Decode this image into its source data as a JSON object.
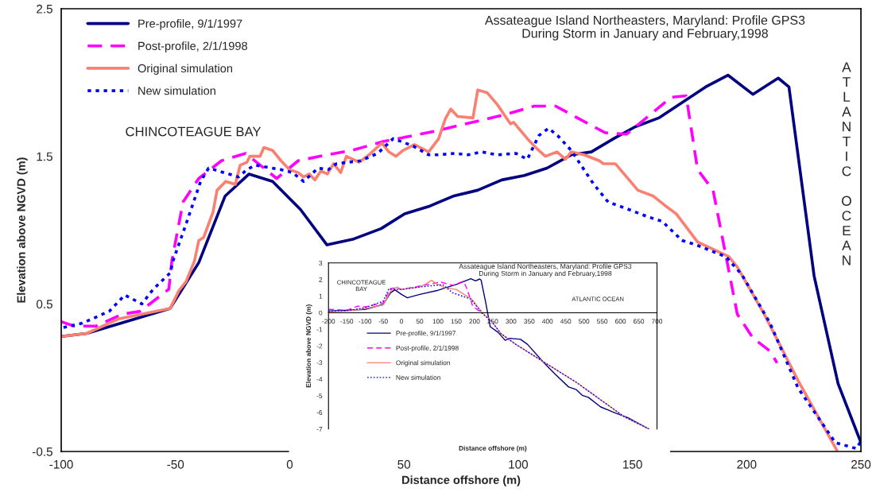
{
  "chart_data": [
    {
      "type": "line",
      "title": "Assateague Island Northeasters, Maryland: Profile GPS3\nDuring Storm in January and February,1998",
      "xlabel": "Distance offshore (m)",
      "ylabel": "Elevation above NGVD (m)",
      "xlim": [
        -100,
        250
      ],
      "xticks": [
        -100,
        -50,
        0,
        50,
        100,
        150,
        200,
        250
      ],
      "ylim": [
        -0.5,
        2.5
      ],
      "yticks": [
        -0.5,
        0.5,
        1.5,
        2.5
      ],
      "grid": false,
      "legend": "top left",
      "annotations": [
        "CHINCOTEAGUE BAY",
        "ATLANTIC OCEAN"
      ],
      "series": [
        {
          "name": "Pre-profile, 9/1/1997",
          "color": "#000080",
          "line_style": "solid",
          "x": [
            -100,
            -88.9,
            -52.3,
            -39.8,
            -28.3,
            -17.8,
            -7.5,
            4.7,
            16.3,
            28,
            40,
            50.3,
            60.8,
            71.5,
            82.2,
            92.8,
            102.7,
            112.6,
            123.2,
            132,
            141.8,
            151.2,
            161.5,
            182,
            191.8,
            202.7,
            213.8,
            218.5,
            229.5,
            240,
            250
          ],
          "values": [
            0.28,
            0.3,
            0.47,
            0.78,
            1.23,
            1.38,
            1.33,
            1.14,
            0.9,
            0.94,
            1.01,
            1.11,
            1.16,
            1.23,
            1.27,
            1.34,
            1.37,
            1.42,
            1.51,
            1.53,
            1.62,
            1.7,
            1.76,
            1.97,
            2.05,
            1.92,
            2.03,
            1.97,
            0.69,
            -0.04,
            -0.44
          ]
        },
        {
          "name": "Post-profile, 2/1/1998",
          "color": "#ff00ff",
          "line_style": "dashed",
          "x": [
            -100,
            -94.4,
            -84.6,
            -73.4,
            -65.4,
            -52.9,
            -51.6,
            -46.7,
            -39.8,
            -29.9,
            -19.3,
            -5.7,
            3.7,
            16.1,
            27.3,
            40.9,
            63.5,
            93.5,
            107,
            116.4,
            138,
            147.4,
            167,
            173.5,
            178.5,
            185.3,
            195.9,
            202.7,
            210.2,
            213.3
          ],
          "values": [
            0.38,
            0.35,
            0.35,
            0.43,
            0.45,
            0.6,
            0.79,
            1.19,
            1.35,
            1.47,
            1.52,
            1.35,
            1.47,
            1.51,
            1.54,
            1.6,
            1.67,
            1.78,
            1.84,
            1.84,
            1.66,
            1.65,
            1.9,
            1.91,
            1.41,
            1.27,
            0.43,
            0.27,
            0.18,
            0.1
          ]
        },
        {
          "name": "Original simulation",
          "color": "#fa8072",
          "line_style": "solid",
          "x": [
            -100,
            -88.9,
            -74.6,
            -52.3,
            -48.5,
            -45.4,
            -41.7,
            -39.8,
            -37.7,
            -33.6,
            -31.8,
            -28,
            -23.8,
            -21.7,
            -18.7,
            -17.5,
            -13,
            -11.3,
            -7.5,
            -3.8,
            -0.1,
            3.7,
            6,
            8.6,
            11,
            13.6,
            16.5,
            19.2,
            22.3,
            24.8,
            30.4,
            34.7,
            40.3,
            43.4,
            46.5,
            49.6,
            54.6,
            60.8,
            65.2,
            68,
            70.5,
            73.5,
            80.2,
            82.3,
            86.5,
            90.9,
            96.6,
            98,
            104,
            108.3,
            111.9,
            117,
            120.7,
            123.2,
            128.8,
            135.5,
            137.3,
            142.5,
            152.4,
            159.2,
            164,
            169.2,
            178.5,
            192.2,
            195.9,
            207.7,
            222.5,
            239.4
          ],
          "values": [
            0.28,
            0.3,
            0.4,
            0.47,
            0.59,
            0.65,
            0.79,
            0.93,
            0.95,
            1.12,
            1.27,
            1.33,
            1.31,
            1.44,
            1.46,
            1.5,
            1.5,
            1.56,
            1.54,
            1.47,
            1.41,
            1.39,
            1.36,
            1.38,
            1.34,
            1.4,
            1.38,
            1.45,
            1.39,
            1.5,
            1.46,
            1.51,
            1.59,
            1.53,
            1.5,
            1.54,
            1.58,
            1.53,
            1.62,
            1.75,
            1.82,
            1.77,
            1.76,
            1.95,
            1.93,
            1.85,
            1.72,
            1.73,
            1.62,
            1.55,
            1.5,
            1.53,
            1.48,
            1.53,
            1.51,
            1.47,
            1.45,
            1.45,
            1.27,
            1.23,
            1.17,
            1.11,
            0.92,
            0.82,
            0.75,
            0.43,
            -0.02,
            -0.49
          ]
        },
        {
          "name": "New simulation",
          "color": "#0000ff",
          "line_style": "dotted",
          "x": [
            -99,
            -90.7,
            -79,
            -72.2,
            -64.7,
            -59.7,
            -52.3,
            -50.9,
            -45.4,
            -41.2,
            -39,
            -35.5,
            -33.1,
            -22.4,
            -18.7,
            -15.1,
            -11.2,
            -3.8,
            1.2,
            6.1,
            12.4,
            16.9,
            20.4,
            31,
            38.5,
            45.3,
            54,
            60.8,
            64.8,
            72.2,
            78,
            84,
            90.9,
            99,
            104,
            109,
            113.3,
            117.3,
            123.2,
            133.1,
            139.4,
            146.7,
            156.8,
            163,
            171.7,
            177.9,
            190.9,
            197.8,
            210.2,
            222.5,
            238.8,
            248,
            250
          ],
          "values": [
            0.34,
            0.37,
            0.45,
            0.56,
            0.5,
            0.6,
            0.71,
            0.8,
            1.04,
            1.23,
            1.33,
            1.42,
            1.41,
            1.36,
            1.41,
            1.44,
            1.43,
            1.41,
            1.39,
            1.33,
            1.42,
            1.41,
            1.45,
            1.47,
            1.52,
            1.62,
            1.57,
            1.51,
            1.51,
            1.52,
            1.51,
            1.53,
            1.51,
            1.52,
            1.48,
            1.64,
            1.69,
            1.64,
            1.54,
            1.31,
            1.19,
            1.15,
            1.09,
            1.06,
            0.93,
            0.9,
            0.82,
            0.7,
            0.37,
            -0.07,
            -0.44,
            -0.48,
            -0.43
          ]
        }
      ]
    },
    {
      "type": "line",
      "title": "Assateague Island Northeasters, Maryland: Profile GPS3\nDuring Storm in January and February,1998",
      "xlabel": "Distance offshore (m)",
      "ylabel": "Elevation above NGVD (m)",
      "xlim": [
        -200,
        700
      ],
      "xticks": [
        -200,
        -150,
        -100,
        -50,
        0,
        50,
        100,
        150,
        200,
        250,
        300,
        350,
        400,
        450,
        500,
        550,
        600,
        650,
        700
      ],
      "ylim": [
        -7,
        3
      ],
      "yticks": [
        -7,
        -6,
        -5,
        -4,
        -3,
        -2,
        -1,
        0,
        1,
        2,
        3
      ],
      "grid": false,
      "legend": "left",
      "annotations": [
        "CHINCOTEAGUE\nBAY",
        "ATLANTIC OCEAN"
      ],
      "series": [
        {
          "name": "Pre-profile, 9/1/1997",
          "color": "#000080",
          "line_style": "solid",
          "x": [
            -200,
            -100,
            -50,
            -30,
            -18,
            0,
            16,
            50,
            100,
            150,
            190,
            203,
            214,
            218,
            230,
            243,
            264,
            284,
            297,
            326,
            345,
            388,
            421,
            458,
            479,
            495,
            512,
            545,
            586,
            620,
            678
          ],
          "values": [
            0.1,
            0.2,
            0.5,
            1.2,
            1.38,
            1.1,
            0.9,
            1.1,
            1.35,
            1.7,
            2.05,
            1.92,
            2.03,
            1.97,
            0.7,
            -0.84,
            -1.17,
            -1.66,
            -1.54,
            -1.6,
            -1.9,
            -2.96,
            -3.7,
            -4.47,
            -4.63,
            -4.97,
            -5.09,
            -5.66,
            -6.04,
            -6.31,
            -7
          ]
        },
        {
          "name": "Post-profile, 2/1/1998",
          "color": "#ff00ff",
          "line_style": "dashed",
          "x": [
            -200,
            -150,
            -120,
            -100,
            -50,
            -30,
            -18,
            0,
            50,
            107,
            140,
            170,
            180,
            195,
            213
          ],
          "values": [
            0.2,
            0.15,
            0.4,
            0.35,
            0.6,
            1.45,
            1.5,
            1.4,
            1.6,
            1.85,
            1.65,
            1.9,
            1.4,
            0.4,
            0.1
          ]
        },
        {
          "name": "Original simulation",
          "color": "#fa8072",
          "line_style": "solid",
          "x": [
            -200,
            -150,
            -100,
            -50,
            -30,
            -12,
            0,
            50,
            68,
            82,
            100,
            120,
            150,
            192,
            222,
            247,
            272,
            313,
            396,
            479,
            562,
            611,
            678
          ],
          "values": [
            0.05,
            0.1,
            0.25,
            0.47,
            1.3,
            1.55,
            1.4,
            1.55,
            1.75,
            1.95,
            1.7,
            1.5,
            1.4,
            0.82,
            0,
            -0.51,
            -1.25,
            -1.9,
            -3.05,
            -4.19,
            -5.5,
            -6.27,
            -7
          ]
        },
        {
          "name": "New simulation",
          "color": "#0000ff",
          "line_style": "dotted",
          "x": [
            -200,
            -150,
            -100,
            -50,
            -35,
            0,
            50,
            113,
            140,
            190,
            222,
            247,
            272,
            313,
            396,
            479,
            562,
            611,
            678
          ],
          "values": [
            0.1,
            0.12,
            0.3,
            0.7,
            1.42,
            1.4,
            1.55,
            1.69,
            1.2,
            0.82,
            -0.07,
            -0.51,
            -1.25,
            -1.9,
            -3.05,
            -4.19,
            -5.5,
            -6.27,
            -7
          ]
        }
      ]
    }
  ]
}
